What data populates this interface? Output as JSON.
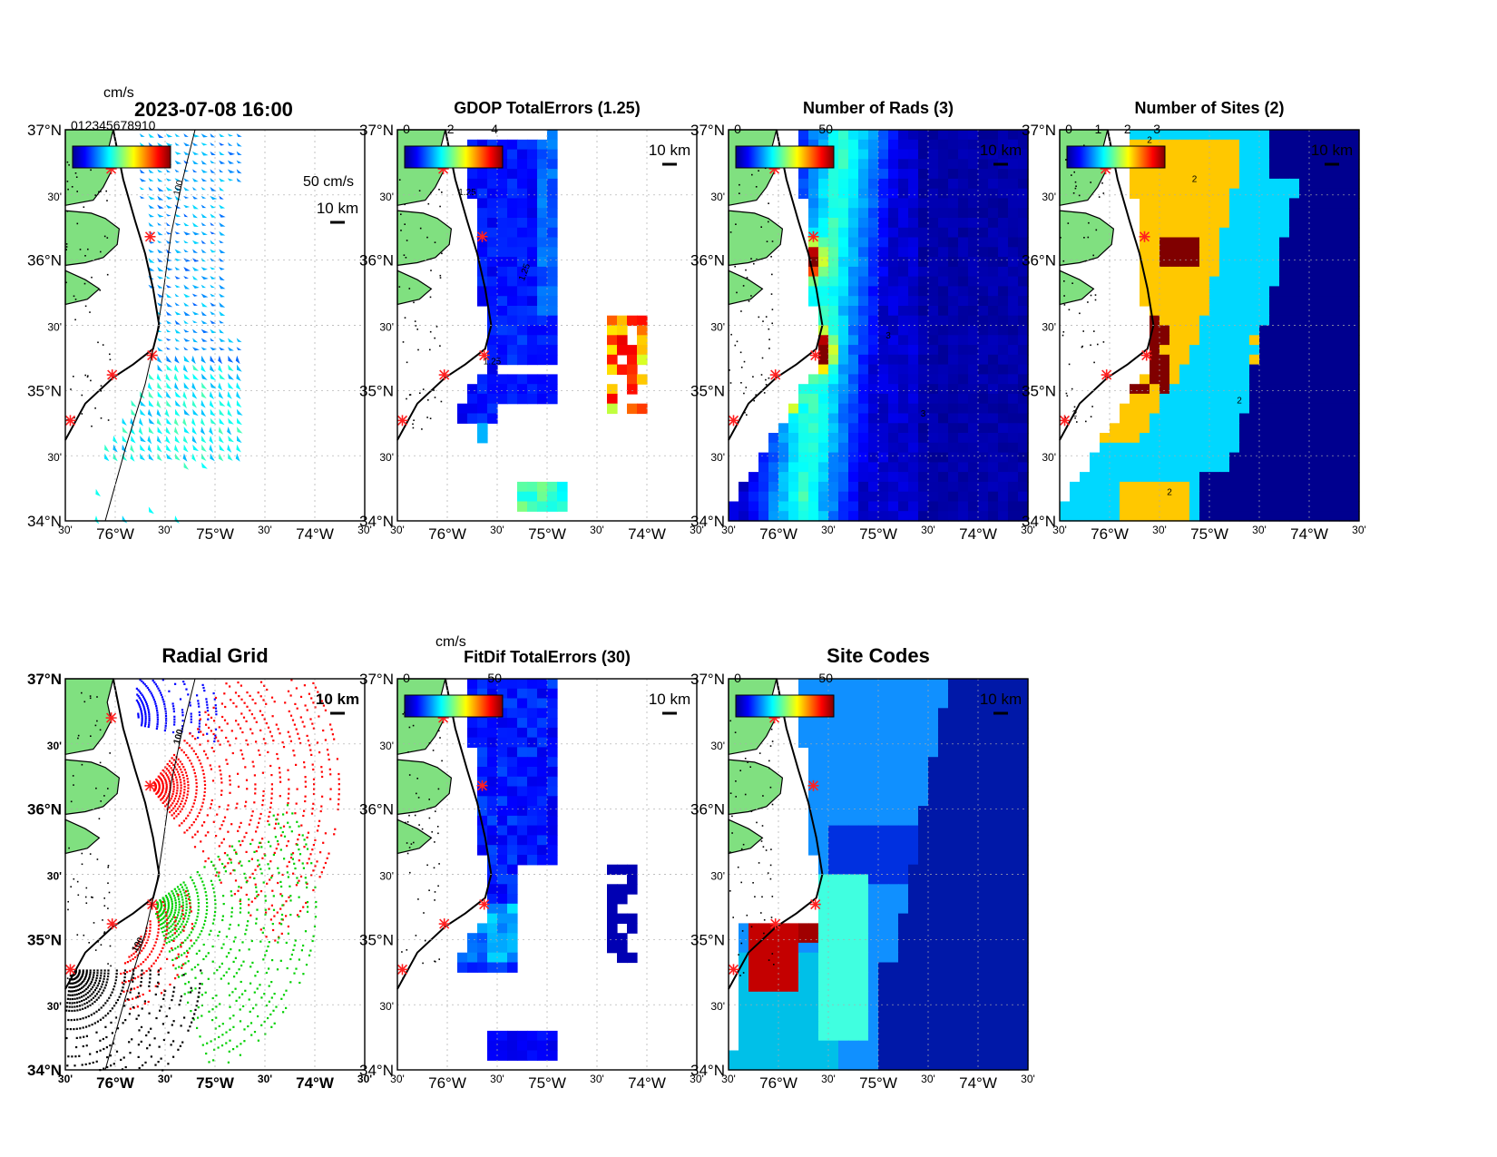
{
  "figure": {
    "timestamp": "2023-07-08 16:00"
  },
  "axes": {
    "lat_labels": [
      "37°N",
      "30'",
      "36°N",
      "30'",
      "35°N",
      "30'",
      "34°N"
    ],
    "lon_labels": [
      "30'",
      "76°W",
      "30'",
      "75°W",
      "30'",
      "74°W",
      "30'"
    ]
  },
  "panels": [
    {
      "id": "p1",
      "title": "",
      "colorbar_unit": "cm/s",
      "colorbar_ticks": [],
      "colorbar_overlap_text": "012345678910",
      "scale_label": "10 km",
      "ref_arrow_label": "50 cm/s",
      "isobath_label": "100",
      "contour_labels": []
    },
    {
      "id": "p2",
      "title": "GDOP TotalErrors (1.25)",
      "colorbar_unit": "",
      "colorbar_ticks": [
        "0",
        "2",
        "4"
      ],
      "scale_label": "10 km",
      "contour_labels": [
        "1.25",
        "1.25",
        "1.25",
        "1.25",
        "0"
      ]
    },
    {
      "id": "p3",
      "title": "Number of Rads (3)",
      "colorbar_unit": "",
      "colorbar_ticks": [
        "0",
        "50"
      ],
      "scale_label": "10 km",
      "contour_labels": [
        "3",
        "3",
        "3",
        "3"
      ]
    },
    {
      "id": "p4",
      "title": "Number of Sites (2)",
      "colorbar_unit": "",
      "colorbar_ticks": [
        "0",
        "1",
        "2",
        "3"
      ],
      "scale_label": "10 km",
      "contour_labels": [
        "2",
        "2",
        "2",
        "2",
        "2",
        "2",
        "2",
        "2"
      ]
    },
    {
      "id": "p5",
      "title": "Radial Grid",
      "scale_label": "10 km",
      "isobath_label": "100"
    },
    {
      "id": "p6",
      "title": "FitDif TotalErrors (30)",
      "colorbar_unit": "cm/s",
      "colorbar_ticks": [
        "0",
        "50"
      ],
      "scale_label": "10 km"
    },
    {
      "id": "p7",
      "title": "Site Codes",
      "colorbar_unit": "",
      "colorbar_ticks": [
        "0",
        "50"
      ],
      "scale_label": "10 km"
    }
  ],
  "map_extent": {
    "lon": [
      -76.5,
      -73.5
    ],
    "lat": [
      34.0,
      37.0
    ]
  },
  "radar_sites": [
    {
      "lon": -76.04,
      "lat": 36.7
    },
    {
      "lon": -75.65,
      "lat": 36.18
    },
    {
      "lon": -75.63,
      "lat": 35.27
    },
    {
      "lon": -76.03,
      "lat": 35.12
    },
    {
      "lon": -76.45,
      "lat": 34.77
    }
  ],
  "colors": {
    "land": "#80e080",
    "site_marker": "#ff2020",
    "site_codes": [
      "#c40000",
      "#00c0e8",
      "#1090ff",
      "#40ffe0",
      "#0030e0",
      "#0018a8"
    ],
    "grid_sites": [
      "#0000ff",
      "#ff0000",
      "#00d000",
      "#ff0000",
      "#000000"
    ]
  },
  "colormap": "jet"
}
